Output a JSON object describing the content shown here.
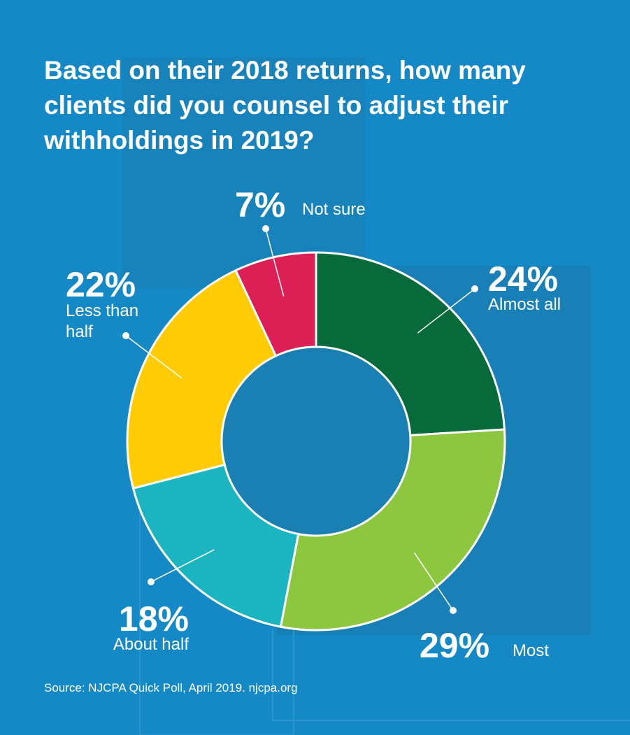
{
  "chart_data": {
    "type": "donut",
    "title": "Based on their 2018 returns, how many clients did you counsel to adjust their withholdings in 2019?",
    "categories": [
      "Almost all",
      "Most",
      "About half",
      "Less than half",
      "Not sure"
    ],
    "values": [
      24,
      29,
      18,
      22,
      7
    ],
    "value_labels": [
      "24%",
      "29%",
      "18%",
      "22%",
      "7%"
    ],
    "colors": [
      "#066a3a",
      "#8dc63f",
      "#1ab5c1",
      "#ffcb05",
      "#dc1f55"
    ],
    "source": "Source: NJCPA Quick Poll, April 2019. njcpa.org"
  }
}
